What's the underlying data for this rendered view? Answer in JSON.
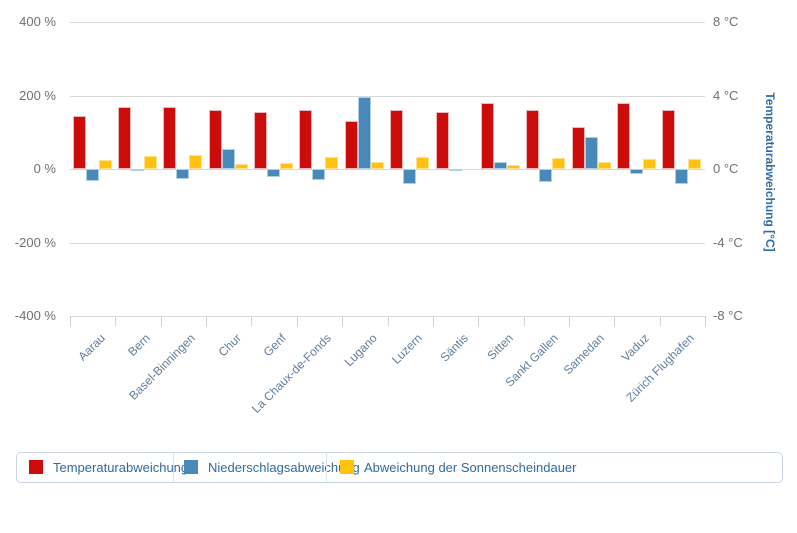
{
  "chart_data": {
    "type": "bar",
    "title": "",
    "categories": [
      "Aarau",
      "Bern",
      "Basel-Binningen",
      "Chur",
      "Genf",
      "La Chaux-de-Fonds",
      "Lugano",
      "Luzern",
      "Säntis",
      "Sitten",
      "Sankt Gallen",
      "Samedan",
      "Vaduz",
      "Zürich Flughafen"
    ],
    "series": [
      {
        "name": "Temperaturabweichung",
        "unit": "°C",
        "axis": "right",
        "color": "#cc0b0b",
        "border_color": "#edb8b8",
        "values": [
          2.9,
          3.4,
          3.4,
          3.2,
          3.1,
          3.2,
          2.6,
          3.2,
          3.1,
          3.6,
          3.2,
          2.3,
          3.6,
          3.2
        ]
      },
      {
        "name": "Niederschlagsabweichung",
        "unit": "%",
        "axis": "left",
        "color": "#4889ba",
        "border_color": "#aecfe4",
        "values": [
          -32,
          -6,
          -26,
          55,
          -21,
          -30,
          197,
          -40,
          -3,
          20,
          -36,
          88,
          -13,
          -42
        ]
      },
      {
        "name": "Abweichung der Sonnenscheindauer",
        "unit": "%",
        "axis": "left",
        "color": "#ffc20e",
        "border_color": "#ffe08f",
        "values": [
          25,
          35,
          38,
          14,
          17,
          33,
          20,
          33,
          0,
          10,
          30,
          19,
          26,
          27
        ]
      }
    ],
    "left_axis": {
      "unit": "%",
      "range": [
        -400,
        400
      ],
      "tick_labels": [
        "400 %",
        "200 %",
        "0 %",
        "-200 %",
        "-400 %"
      ]
    },
    "right_axis": {
      "unit": "°C",
      "range": [
        -8,
        8
      ],
      "tick_labels": [
        "8 °C",
        "4 °C",
        "0 °C",
        "-4 °C",
        "-8 °C"
      ],
      "title": "Temperaturabweichung [°C]"
    },
    "grid": true,
    "legend_position": "bottom"
  }
}
